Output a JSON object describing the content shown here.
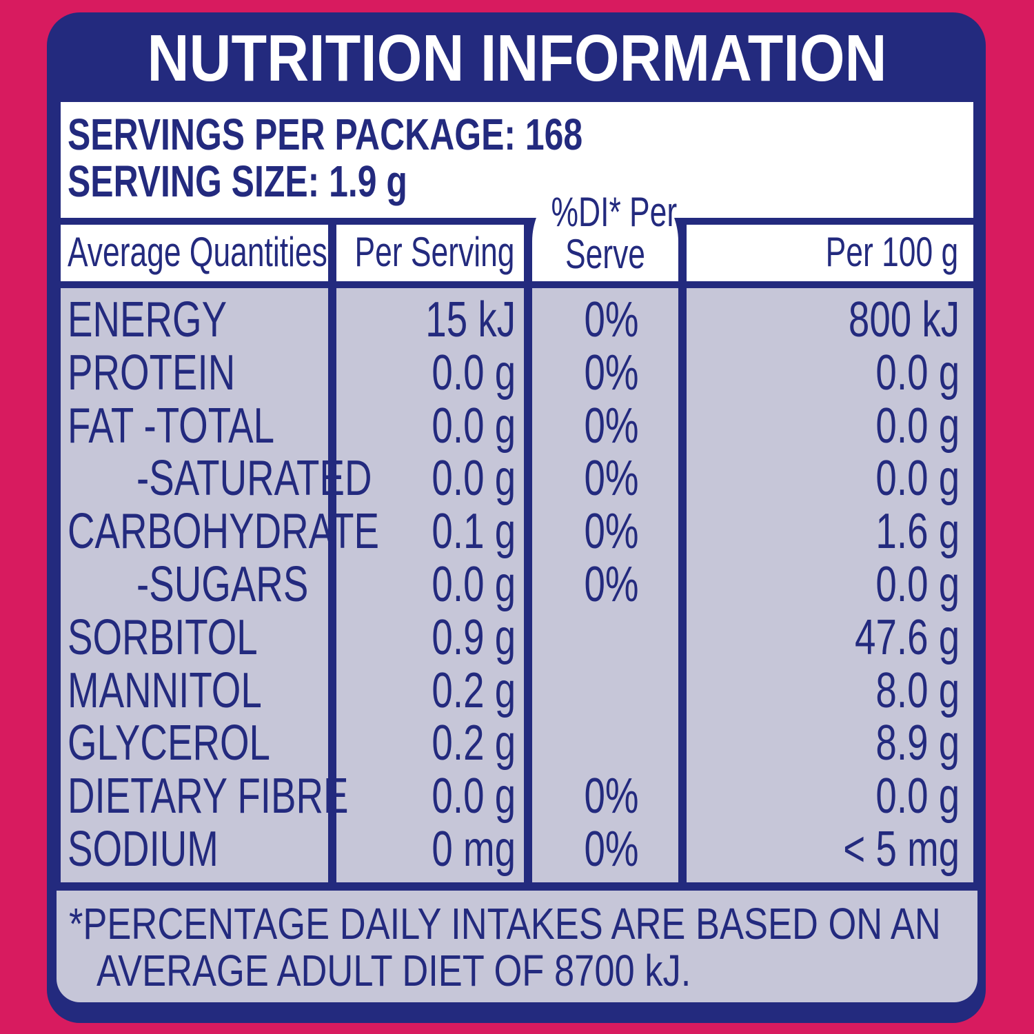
{
  "title": "NUTRITION INFORMATION",
  "servings_per_package": "SERVINGS PER PACKAGE: 168",
  "serving_size": "SERVING SIZE: 1.9 g",
  "columns": {
    "quantities": "Average Quantities",
    "per_serving": "Per Serving",
    "di_line1": "%DI* Per",
    "di_line2": "Serve",
    "per_100g": "Per 100 g"
  },
  "rows": [
    {
      "name": "ENERGY",
      "per_serving": "15 kJ",
      "di": "0%",
      "per_100g": "800 kJ"
    },
    {
      "name": "PROTEIN",
      "per_serving": "0.0 g",
      "di": "0%",
      "per_100g": "0.0 g"
    },
    {
      "name": "FAT  -TOTAL",
      "per_serving": "0.0 g",
      "di": "0%",
      "per_100g": "0.0 g"
    },
    {
      "name": "-SATURATED",
      "per_serving": "0.0 g",
      "di": "0%",
      "per_100g": "0.0 g"
    },
    {
      "name": "CARBOHYDRATE",
      "per_serving": "0.1 g",
      "di": "0%",
      "per_100g": "1.6 g"
    },
    {
      "name": "-SUGARS",
      "per_serving": "0.0 g",
      "di": "0%",
      "per_100g": "0.0 g"
    },
    {
      "name": "SORBITOL",
      "per_serving": "0.9 g",
      "di": "",
      "per_100g": "47.6 g"
    },
    {
      "name": "MANNITOL",
      "per_serving": "0.2 g",
      "di": "",
      "per_100g": "8.0 g"
    },
    {
      "name": "GLYCEROL",
      "per_serving": "0.2 g",
      "di": "",
      "per_100g": "8.9 g"
    },
    {
      "name": "DIETARY FIBRE",
      "per_serving": "0.0 g",
      "di": "0%",
      "per_100g": "0.0 g"
    },
    {
      "name": "SODIUM",
      "per_serving": "0 mg",
      "di": "0%",
      "per_100g": "< 5 mg"
    }
  ],
  "footnote_line1": "*PERCENTAGE DAILY INTAKES ARE BASED ON AN",
  "footnote_line2": "AVERAGE ADULT DIET OF 8700 kJ.",
  "colors": {
    "background": "#d81b5f",
    "panel": "#232a7e",
    "table": "#c6c6d8",
    "text": "#232a7e"
  }
}
